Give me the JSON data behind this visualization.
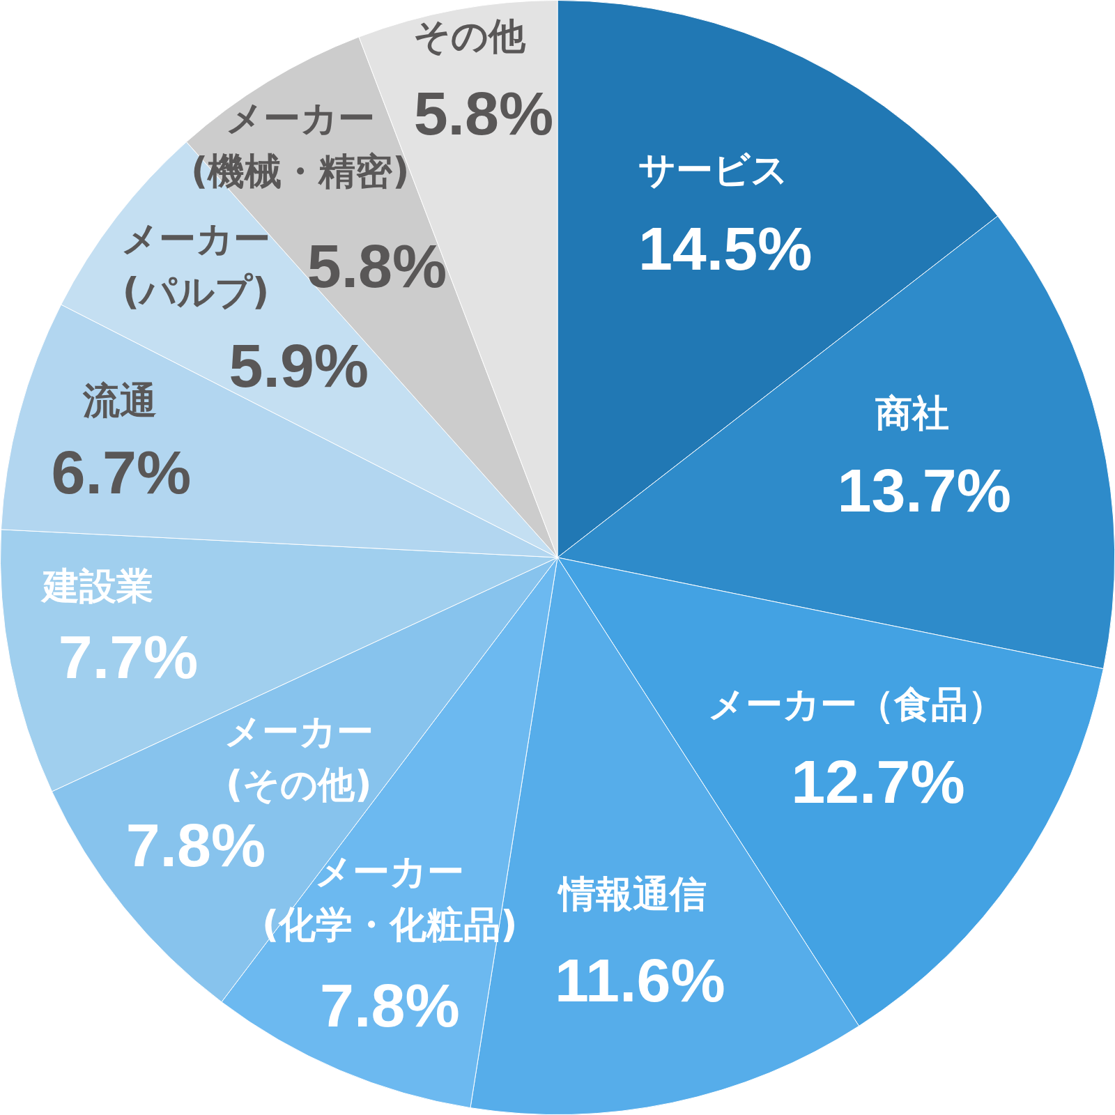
{
  "chart_data": {
    "type": "pie",
    "categories": [
      "サービス",
      "商社",
      "メーカー（食品）",
      "情報通信",
      "メーカー(化学・化粧品)",
      "メーカー(その他)",
      "建設業",
      "流通",
      "メーカー(パルプ)",
      "メーカー(機械・精密)",
      "その他"
    ],
    "values": [
      14.5,
      13.7,
      12.7,
      11.6,
      7.8,
      7.8,
      7.7,
      6.7,
      5.9,
      5.8,
      5.8
    ],
    "colors": [
      "#2178b4",
      "#2e8bca",
      "#43a2e3",
      "#56adea",
      "#6cb9f0",
      "#87c3ed",
      "#a0cfee",
      "#b2d6f0",
      "#c4dff2",
      "#cccccc",
      "#e3e3e3"
    ],
    "value_labels": [
      "14.5%",
      "13.7%",
      "12.7%",
      "11.6%",
      "7.8%",
      "7.8%",
      "7.7%",
      "6.7%",
      "5.9%",
      "5.8%",
      "5.8%"
    ]
  }
}
